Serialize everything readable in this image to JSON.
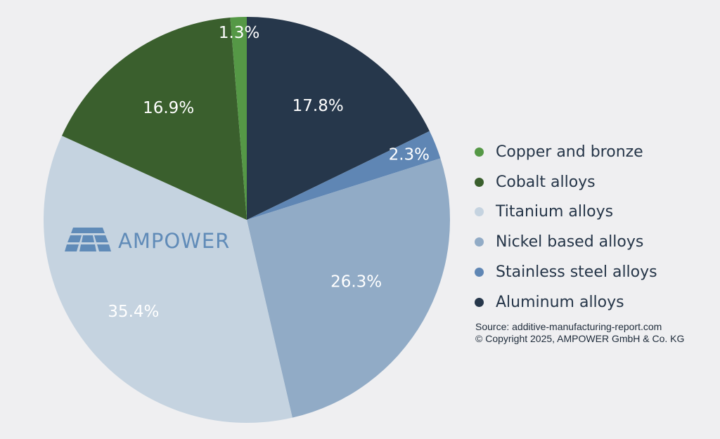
{
  "chart_data": {
    "type": "pie",
    "slices": [
      {
        "label": "Aluminum alloys",
        "value": 17.8,
        "display": "17.8%",
        "color": "#26374b"
      },
      {
        "label": "Stainless steel alloys",
        "value": 2.3,
        "display": "2.3%",
        "color": "#5f86b4"
      },
      {
        "label": "Nickel based alloys",
        "value": 26.3,
        "display": "26.3%",
        "color": "#91abc6"
      },
      {
        "label": "Titanium alloys",
        "value": 35.4,
        "display": "35.4%",
        "color": "#c5d3e0"
      },
      {
        "label": "Cobalt alloys",
        "value": 16.9,
        "display": "16.9%",
        "color": "#3a5f2d"
      },
      {
        "label": "Copper and bronze",
        "value": 1.3,
        "display": "1.3%",
        "color": "#559846"
      }
    ],
    "legend_order": [
      "Copper and bronze",
      "Cobalt alloys",
      "Titanium alloys",
      "Nickel based alloys",
      "Stainless steel alloys",
      "Aluminum alloys"
    ],
    "legend_placement": "right",
    "start_angle": "12 o'clock, clockwise"
  },
  "watermark": {
    "text": "AMPOWER",
    "color": "#4f7fb2"
  },
  "source": {
    "line1": "Source: additive-manufacturing-report.com",
    "line2": "© Copyright 2025, AMPOWER GmbH & Co. KG"
  },
  "colors": {
    "background": "#efeff1",
    "legend_text": "#253548",
    "slice_label_text": "#ffffff"
  }
}
